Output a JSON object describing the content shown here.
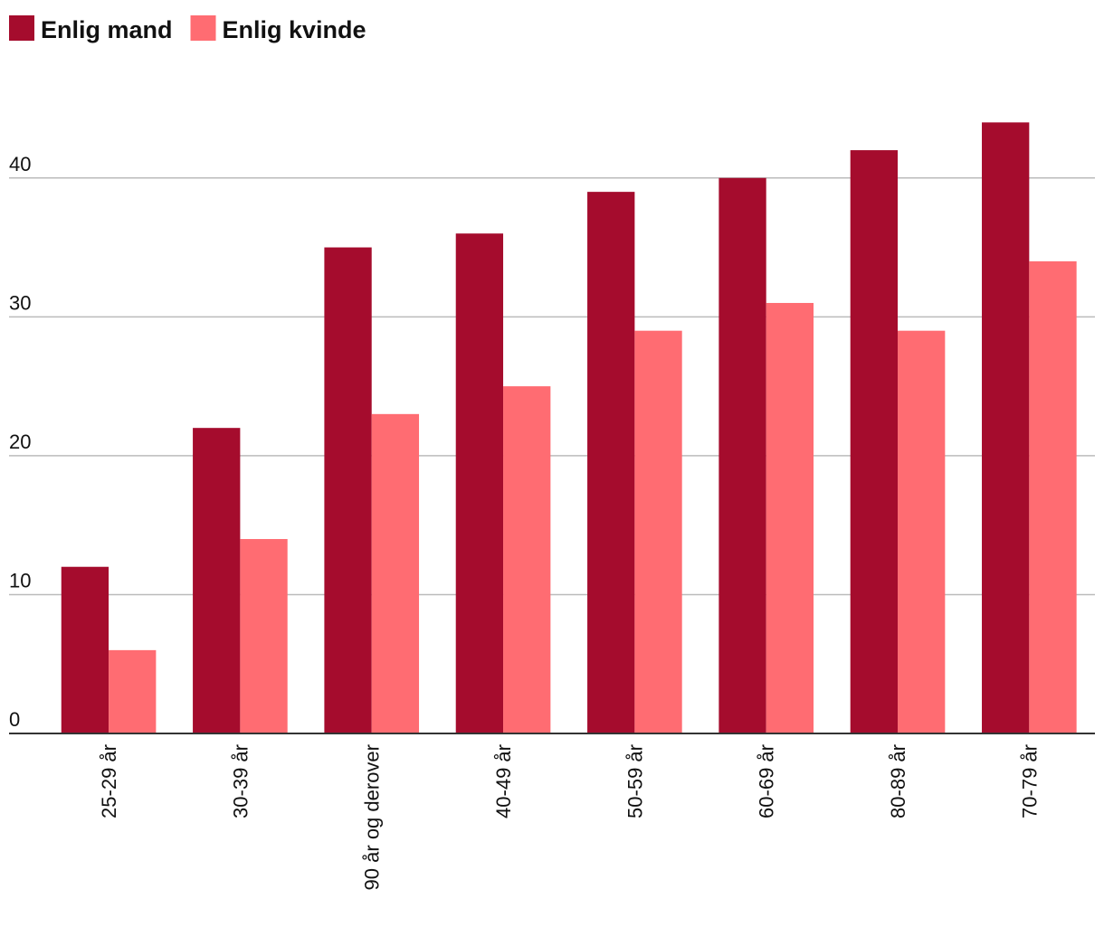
{
  "chart_data": {
    "type": "bar",
    "categories": [
      "25-29 år",
      "30-39 år",
      "90 år og derover",
      "40-49 år",
      "50-59 år",
      "60-69 år",
      "80-89 år",
      "70-79 år"
    ],
    "series": [
      {
        "name": "Enlig mand",
        "color": "#a50c2d",
        "values": [
          12,
          22,
          35,
          36,
          39,
          40,
          42,
          44
        ]
      },
      {
        "name": "Enlig kvinde",
        "color": "#ff6c72",
        "values": [
          6,
          14,
          23,
          25,
          29,
          31,
          29,
          34
        ]
      }
    ],
    "ylim": [
      0,
      45
    ],
    "yticks": [
      0,
      10,
      20,
      30,
      40
    ],
    "grid": true
  }
}
